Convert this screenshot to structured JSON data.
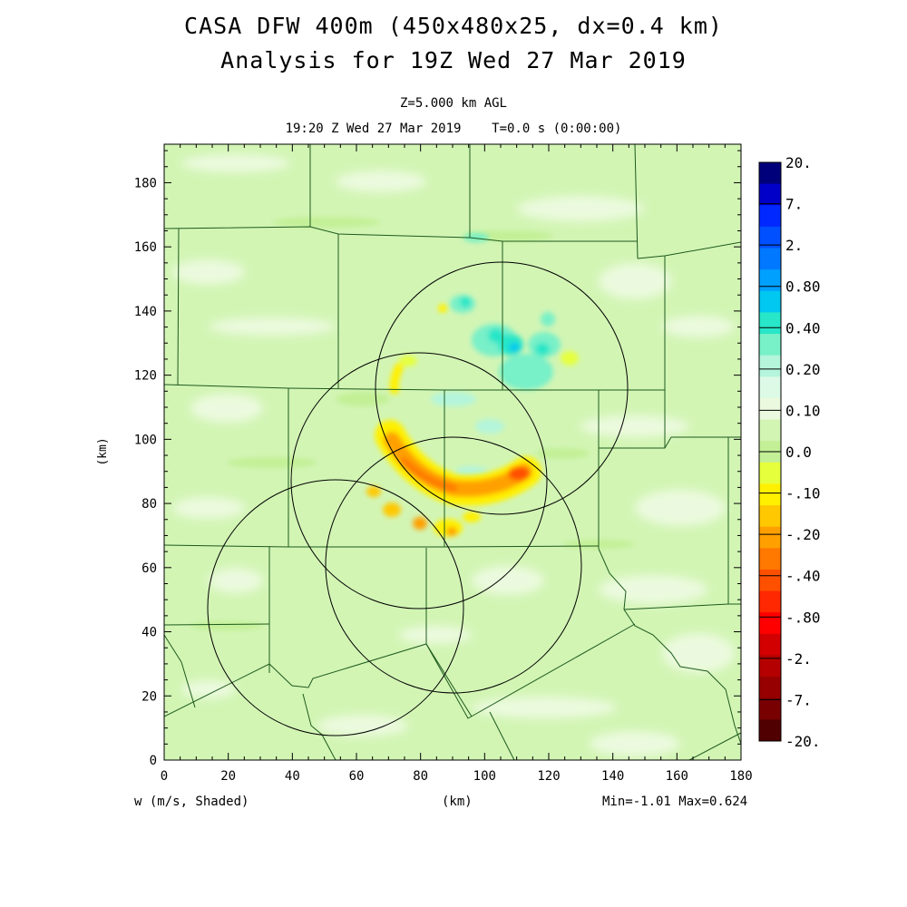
{
  "title": {
    "line1": "CASA DFW 400m (450x480x25, dx=0.4 km)",
    "line2": "Analysis for 19Z Wed 27 Mar 2019"
  },
  "subtitle": {
    "level": "Z=5.000 km AGL",
    "time": "19:20 Z Wed 27 Mar 2019    T=0.0 s (0:00:00)"
  },
  "footer": {
    "variable": "w (m/s, Shaded)",
    "xunit": "(km)",
    "minmax": "Min=-1.01 Max=0.624"
  },
  "chart_data": {
    "type": "heatmap",
    "variable": "w (m/s, Shaded)",
    "ylabel": "(km)",
    "xlabel": "(km)",
    "xlim": [
      0,
      180
    ],
    "ylim": [
      0,
      192
    ],
    "x_ticks": [
      "0",
      "20",
      "40",
      "60",
      "80",
      "100",
      "120",
      "140",
      "160",
      "180"
    ],
    "y_ticks": [
      "0",
      "20",
      "40",
      "60",
      "80",
      "100",
      "120",
      "140",
      "160",
      "180"
    ],
    "x_tick_values": [
      0,
      20,
      40,
      60,
      80,
      100,
      120,
      140,
      160,
      180
    ],
    "y_tick_values": [
      0,
      20,
      40,
      60,
      80,
      100,
      120,
      140,
      160,
      180
    ],
    "colorbar": {
      "labels": [
        "20.",
        "7.",
        "2.",
        "0.80",
        "0.40",
        "0.20",
        "0.10",
        "0.0",
        "-.10",
        "-.20",
        "-.40",
        "-.80",
        "-2.",
        "-7.",
        "-20."
      ],
      "colors": [
        "#00007a",
        "#0000c8",
        "#0028ff",
        "#0050ff",
        "#0078ff",
        "#00a0ff",
        "#00c8f0",
        "#28e6c8",
        "#78f0c8",
        "#b4f5dc",
        "#dcfae6",
        "#ebfade",
        "#d2f5b4",
        "#c3f096",
        "#e6ff3c",
        "#fff000",
        "#ffc800",
        "#ffa000",
        "#ff7800",
        "#ff5000",
        "#ff2800",
        "#ff0000",
        "#d20000",
        "#b40000",
        "#960000",
        "#780000",
        "#500000"
      ]
    },
    "radar_rings": [
      {
        "cx": 108,
        "cy": 116,
        "r": 39
      },
      {
        "cx": 80,
        "cy": 87,
        "r": 40
      },
      {
        "cx": 91,
        "cy": 61,
        "r": 40
      },
      {
        "cx": 54,
        "cy": 48,
        "r": 40
      }
    ],
    "min": -1.01,
    "max": 0.624
  }
}
